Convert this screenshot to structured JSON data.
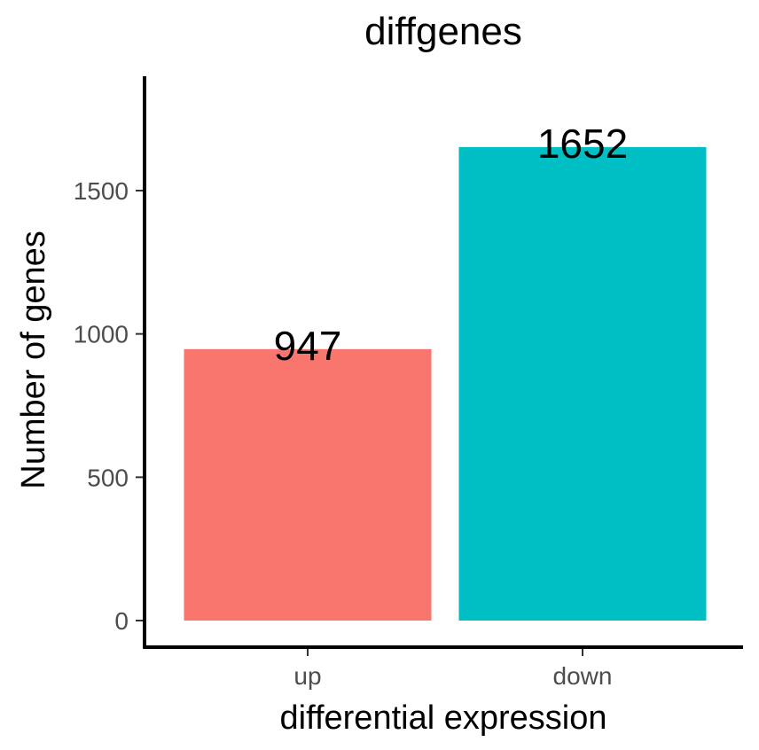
{
  "chart_data": {
    "type": "bar",
    "title": "diffgenes",
    "xlabel": "differential expression",
    "ylabel": "Number of genes",
    "categories": [
      "up",
      "down"
    ],
    "values": [
      947,
      1652
    ],
    "data_labels": [
      "947",
      "1652"
    ],
    "colors": [
      "#F8766D",
      "#00BFC4"
    ],
    "ylim": [
      0,
      1900
    ],
    "yticks": [
      0,
      500,
      1000,
      1500
    ],
    "ytick_labels": [
      "0",
      "500",
      "1000",
      "1500"
    ],
    "grid": false,
    "legend": "none"
  }
}
